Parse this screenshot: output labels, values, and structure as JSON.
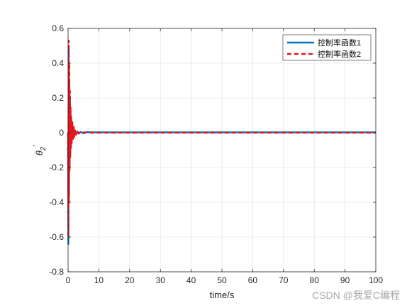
{
  "chart_data": {
    "type": "line",
    "title": "",
    "xlabel": "time/s",
    "ylabel_base": "θ",
    "ylabel_sub": "2",
    "ylabel_sup": "'",
    "xlim": [
      0,
      100
    ],
    "ylim": [
      -0.8,
      0.6
    ],
    "xticks": [
      0,
      10,
      20,
      30,
      40,
      50,
      60,
      70,
      80,
      90,
      100
    ],
    "yticks": [
      -0.8,
      -0.6,
      -0.4,
      -0.2,
      0,
      0.2,
      0.4,
      0.6
    ],
    "xtick_labels": [
      "0",
      "10",
      "20",
      "30",
      "40",
      "50",
      "60",
      "70",
      "80",
      "90",
      "100"
    ],
    "ytick_labels": [
      "-0.8",
      "-0.6",
      "-0.4",
      "-0.2",
      "0",
      "0.2",
      "0.4",
      "0.6"
    ],
    "grid": true,
    "legend_position": "top-right",
    "series": [
      {
        "name": "控制率函数1",
        "color": "#0072BD",
        "style": "solid",
        "x": [
          0,
          0.1,
          0.2,
          0.3,
          0.4,
          0.5,
          0.6,
          0.7,
          0.8,
          0.9,
          1.0,
          1.2,
          1.4,
          1.6,
          1.8,
          2.0,
          2.3,
          2.6,
          3.0,
          3.5,
          4.0,
          5.0,
          6.0,
          8.0,
          10,
          15,
          20,
          30,
          40,
          50,
          60,
          70,
          80,
          90,
          100
        ],
        "y": [
          0,
          -0.64,
          0.5,
          -0.35,
          0.3,
          -0.2,
          0.2,
          -0.12,
          0.12,
          -0.08,
          0.08,
          -0.04,
          0.04,
          -0.02,
          0.02,
          -0.015,
          0.01,
          -0.01,
          0.006,
          -0.005,
          0.004,
          -0.003,
          0.003,
          0.002,
          0.002,
          0.002,
          0.002,
          0.002,
          0.002,
          0.002,
          0.002,
          0.002,
          0.002,
          0.002,
          0.002
        ]
      },
      {
        "name": "控制率函数2",
        "color": "#E8141B",
        "style": "dashed",
        "x": [
          0,
          0.1,
          0.2,
          0.3,
          0.4,
          0.5,
          0.6,
          0.7,
          0.8,
          0.9,
          1.0,
          1.2,
          1.4,
          1.6,
          1.8,
          2.0,
          2.3,
          2.6,
          3.0,
          3.5,
          4.0,
          5.0,
          6.0,
          8.0,
          10,
          15,
          20,
          30,
          40,
          50,
          60,
          70,
          80,
          90,
          100
        ],
        "y": [
          0,
          -0.6,
          0.53,
          -0.4,
          0.4,
          -0.22,
          0.24,
          -0.14,
          0.15,
          -0.1,
          0.1,
          -0.06,
          0.06,
          -0.04,
          0.04,
          -0.025,
          0.02,
          -0.012,
          0.008,
          -0.005,
          0.003,
          0.002,
          0.001,
          0.0,
          0.0,
          0.0,
          0.0,
          0.0,
          0.0,
          0.0,
          0.0,
          0.0,
          0.0,
          0.0,
          0.0
        ]
      }
    ]
  },
  "watermark": "CSDN @我爱C编程"
}
